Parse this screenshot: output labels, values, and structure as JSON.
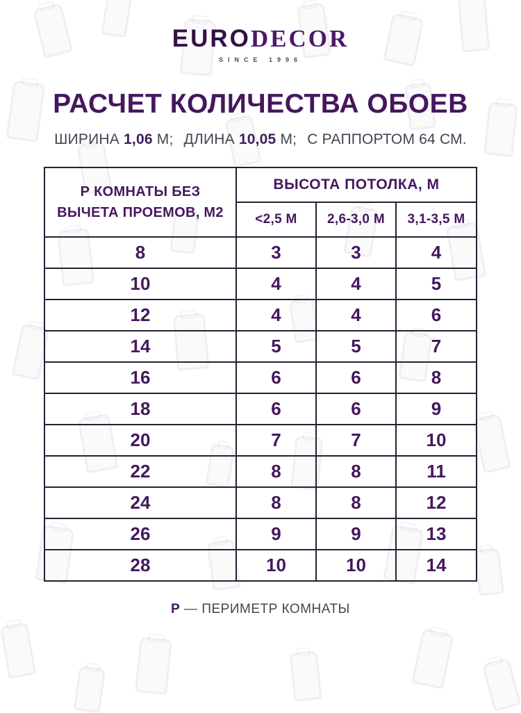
{
  "brand": {
    "logo_part1": "EURO",
    "logo_part2": "DECOR",
    "tagline": "SINCE 1996"
  },
  "title": "РАСЧЕТ КОЛИЧЕСТВА ОБОЕВ",
  "subtitle": {
    "width_label": "ШИРИНА",
    "width_value": "1,06",
    "width_unit": "М;",
    "length_label": "ДЛИНА",
    "length_value": "10,05",
    "length_unit": "М;",
    "rapport": "С РАППОРТОМ 64 СМ."
  },
  "table": {
    "col1_header_line1": "Р КОМНАТЫ БЕЗ",
    "col1_header_line2": "ВЫЧЕТА ПРОЕМОВ, М2",
    "group_header": "ВЫСОТА ПОТОЛКА, М",
    "sub_headers": [
      "<2,5 М",
      "2,6-3,0 М",
      "3,1-3,5 М"
    ],
    "rows": [
      [
        "8",
        "3",
        "3",
        "4"
      ],
      [
        "10",
        "4",
        "4",
        "5"
      ],
      [
        "12",
        "4",
        "4",
        "6"
      ],
      [
        "14",
        "5",
        "5",
        "7"
      ],
      [
        "16",
        "6",
        "6",
        "8"
      ],
      [
        "18",
        "6",
        "6",
        "9"
      ],
      [
        "20",
        "7",
        "7",
        "10"
      ],
      [
        "22",
        "8",
        "8",
        "11"
      ],
      [
        "24",
        "8",
        "8",
        "12"
      ],
      [
        "26",
        "9",
        "9",
        "13"
      ],
      [
        "28",
        "10",
        "10",
        "14"
      ]
    ]
  },
  "footer": {
    "symbol": "Р",
    "text": "— ПЕРИМЕТР КОМНАТЫ"
  },
  "colors": {
    "purple": "#45175e",
    "purple_dark": "#331048",
    "border": "#262033",
    "gray_text": "#414450"
  },
  "chart_data": {
    "type": "table",
    "title": "РАСЧЕТ КОЛИЧЕСТВА ОБОЕВ",
    "columns": [
      "Р КОМНАТЫ БЕЗ ВЫЧЕТА ПРОЕМОВ, М2",
      "<2,5 М",
      "2,6-3,0 М",
      "3,1-3,5 М"
    ],
    "column_group": "ВЫСОТА ПОТОЛКА, М",
    "rows": [
      [
        8,
        3,
        3,
        4
      ],
      [
        10,
        4,
        4,
        5
      ],
      [
        12,
        4,
        4,
        6
      ],
      [
        14,
        5,
        5,
        7
      ],
      [
        16,
        6,
        6,
        8
      ],
      [
        18,
        6,
        6,
        9
      ],
      [
        20,
        7,
        7,
        10
      ],
      [
        22,
        8,
        8,
        11
      ],
      [
        24,
        8,
        8,
        12
      ],
      [
        26,
        9,
        9,
        13
      ],
      [
        28,
        10,
        10,
        14
      ]
    ]
  }
}
